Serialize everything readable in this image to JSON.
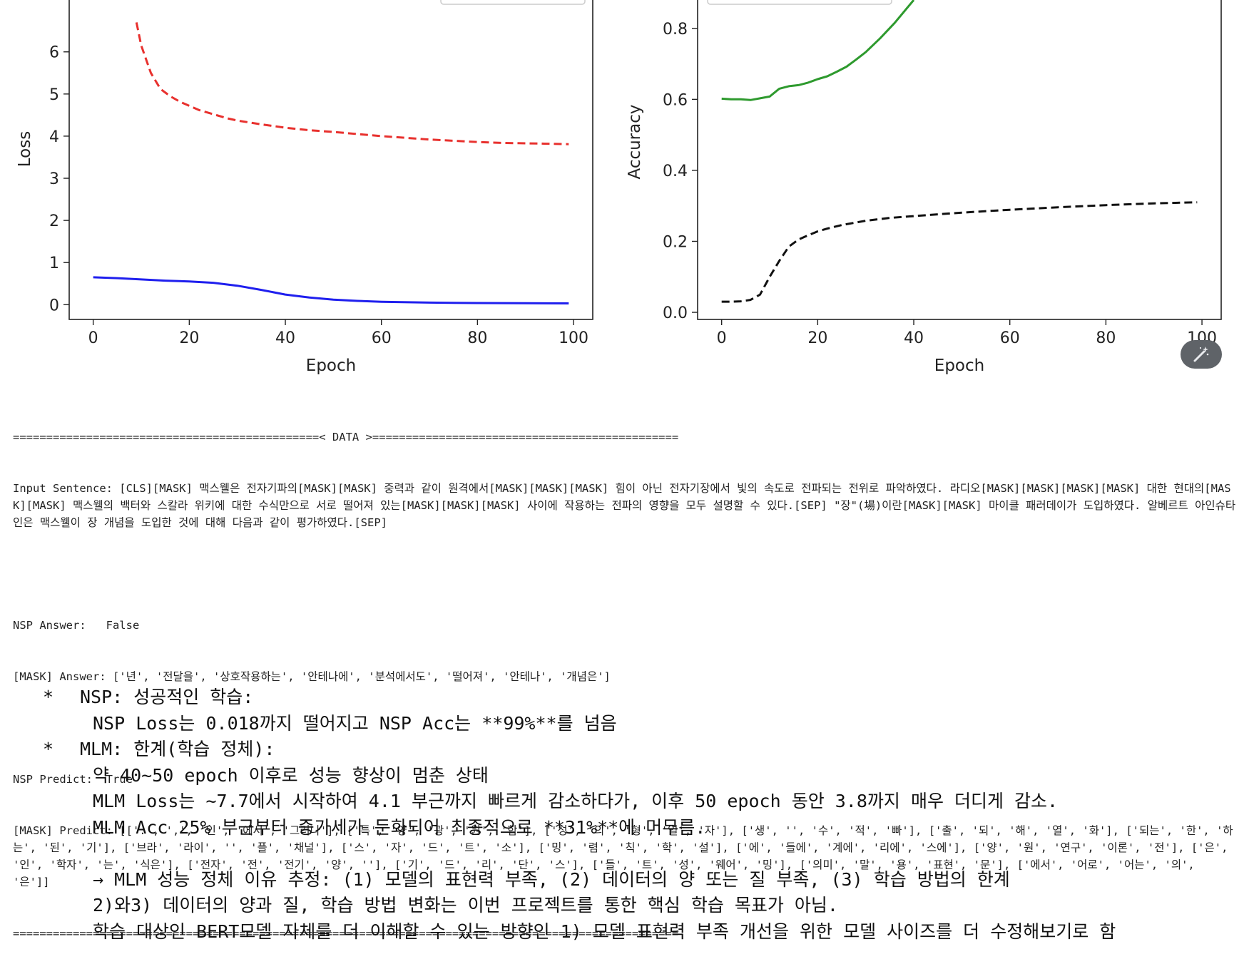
{
  "chart_data": [
    {
      "type": "line",
      "xlabel": "Epoch",
      "ylabel": "Loss",
      "xticks": [
        "0",
        "20",
        "40",
        "60",
        "80",
        "100"
      ],
      "yticks": [
        "0",
        "1",
        "2",
        "3",
        "4",
        "5",
        "6"
      ],
      "xlim": [
        -5,
        104
      ],
      "ylim": [
        -0.35,
        7.4
      ],
      "legend": "top-right (cropped)",
      "series": [
        {
          "color": "#e8312e",
          "style": "dashed",
          "x": [
            9,
            10,
            12,
            14,
            16,
            18,
            20,
            22,
            25,
            28,
            30,
            35,
            40,
            45,
            50,
            55,
            60,
            65,
            70,
            75,
            80,
            85,
            90,
            95,
            99
          ],
          "y": [
            6.7,
            6.15,
            5.5,
            5.12,
            4.95,
            4.82,
            4.72,
            4.62,
            4.52,
            4.42,
            4.37,
            4.28,
            4.2,
            4.14,
            4.1,
            4.05,
            4.0,
            3.96,
            3.92,
            3.89,
            3.86,
            3.84,
            3.83,
            3.82,
            3.81
          ]
        },
        {
          "color": "#1f1fee",
          "style": "solid",
          "x": [
            0,
            5,
            10,
            15,
            20,
            25,
            30,
            35,
            40,
            45,
            50,
            55,
            60,
            70,
            80,
            90,
            99
          ],
          "y": [
            0.65,
            0.63,
            0.6,
            0.57,
            0.55,
            0.52,
            0.45,
            0.35,
            0.24,
            0.17,
            0.12,
            0.09,
            0.07,
            0.05,
            0.04,
            0.035,
            0.03
          ]
        }
      ]
    },
    {
      "type": "line",
      "xlabel": "Epoch",
      "ylabel": "Accuracy",
      "xticks": [
        "0",
        "20",
        "40",
        "60",
        "80",
        "100"
      ],
      "yticks": [
        "0.0",
        "0.2",
        "0.4",
        "0.6",
        "0.8"
      ],
      "xlim": [
        -5,
        104
      ],
      "ylim": [
        -0.02,
        0.9
      ],
      "legend": "top-left (cropped)",
      "series": [
        {
          "color": "#2e9a2e",
          "style": "solid",
          "x": [
            0,
            2,
            4,
            6,
            8,
            10,
            12,
            14,
            16,
            18,
            20,
            22,
            24,
            26,
            28,
            30,
            33,
            36,
            40
          ],
          "y": [
            0.602,
            0.6,
            0.6,
            0.598,
            0.603,
            0.608,
            0.63,
            0.637,
            0.64,
            0.647,
            0.657,
            0.665,
            0.678,
            0.692,
            0.712,
            0.733,
            0.772,
            0.815,
            0.88
          ]
        },
        {
          "color": "#111111",
          "style": "dashed",
          "x": [
            0,
            2,
            4,
            6,
            8,
            10,
            12,
            14,
            16,
            18,
            20,
            22,
            25,
            30,
            35,
            40,
            45,
            50,
            60,
            70,
            80,
            90,
            99
          ],
          "y": [
            0.03,
            0.03,
            0.031,
            0.035,
            0.05,
            0.1,
            0.145,
            0.185,
            0.205,
            0.217,
            0.228,
            0.236,
            0.246,
            0.258,
            0.266,
            0.271,
            0.276,
            0.281,
            0.289,
            0.296,
            0.302,
            0.307,
            0.31
          ]
        }
      ]
    }
  ],
  "data_block": {
    "header": "==============================================< DATA >==============================================",
    "input_sentence": "Input Sentence: [CLS][MASK] 맥스웰은 전자기파의[MASK][MASK] 중력과 같이 원격에서[MASK][MASK][MASK] 힘이 아닌 전자기장에서 빛의 속도로 전파되는 전위로 파악하였다. 라디오[MASK][MASK][MASK][MASK] 대한 현대의[MASK][MASK] 맥스웰의 백터와 스칼라 위키에 대한 수식만으로 서로 떨어져 있는[MASK][MASK][MASK] 사이에 작용하는 전파의 영향을 모두 설명할 수 있다.[SEP] \"장\"(場)이란[MASK][MASK] 마이클 패러데이가 도입하였다. 알베르트 아인슈타인은 맥스웰이 장 개념을 도입한 것에 대해 다음과 같이 평가하였다.[SEP]",
    "nsp_answer": "NSP Answer:   False",
    "mask_answer": "[MASK] Answer: ['년', '전달을', '상호작용하는', '안테나에', '분석에서도', '떨어져', '안테나', '개념은']",
    "nsp_predict": "NSP Predict:  True",
    "mask_predict": "[MASK] Predict: [['.', ',', '인', '에서', '그러나'], ['특', '양', '광', '원', '합'], ['성', '의', '형', '열', '자'], ['생', '', '수', '적', '빠'], ['출', '되', '해', '열', '화'], ['되는', '한', '하는', '된', '기'], ['브라', '라이', '', '플', '채널'], ['스', '자', '드', '트', '소'], ['밍', '렴', '칙', '학', '설'], ['에', '들에', '계에', '리에', '스에'], ['양', '원', '연구', '이론', '전'], ['은', '인', '학자', '는', '식은'], ['전자', '전', '전기', '양', ''], ['기', '드', '리', '단', '스'], ['들', '트', '성', '웨어', '밍'], ['의미', '말', '용', '표현', '문'], ['에서', '어로', '어는', '의', '은']]",
    "footer": "===================================================================================================="
  },
  "notes": {
    "bullet_symbol": "*",
    "nsp_title": "NSP: 성공적인 학습:",
    "nsp_line": "NSP Loss는 0.018까지 떨어지고 NSP Acc는 **99%**를 넘음",
    "mlm_title": "MLM: 한계(학습 정체):",
    "mlm_line1": "약 40~50 epoch 이후로 성능 향상이 멈춘 상태",
    "mlm_line2": "MLM Loss는 ~7.7에서 시작하여 4.1 부근까지 빠르게 감소하다가, 이후 50 epoch 동안 3.8까지 매우 더디게 감소.",
    "mlm_line3": "MLM Acc 25% 부근부터 증가세가 둔화되어 최종적으로 **31%**에 머무름.",
    "reason_line1": "→ MLM 성능 정체 이유 추정: (1) 모델의 표현력 부족, (2) 데이터의 양 또는 질 부족, (3) 학습 방법의 한계",
    "reason_line2": "2)와3) 데이터의 양과 질, 학습 방법 변화는 이번 프로젝트를 통한 핵심 학습 목표가 아님.",
    "reason_line3": "학습 대상인 BERT모델 자체를 더 이해할 수 있는 방향인 1) 모델 표현력 부족 개선을 위한 모델 사이즈를 더 수정해보기로 함"
  },
  "edit_icon": "magic-wand-icon"
}
